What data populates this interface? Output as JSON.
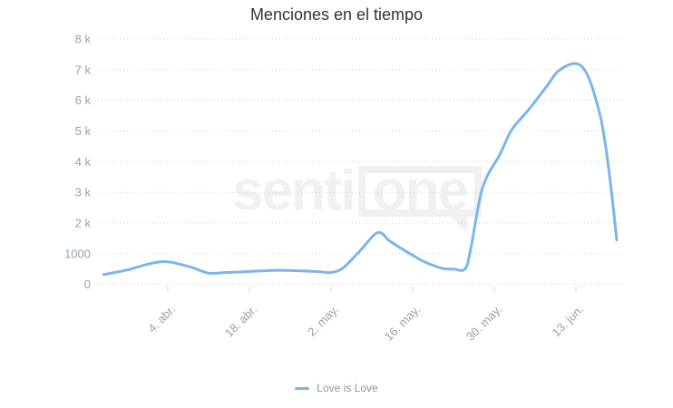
{
  "page": {
    "background": "#ffffff"
  },
  "watermark": {
    "senti": "senti",
    "one": "one"
  },
  "colors": {
    "line": "#7cb5ec",
    "grid_dots": "#cccccc",
    "axis_label": "#979eae",
    "tick_mark": "#d2d5dd",
    "title": "#333333",
    "legend_text": "#8d95a5",
    "watermark": "#f0f0f3"
  },
  "chart_data": {
    "type": "line",
    "title": "Menciones en el tiempo",
    "xlabel": "",
    "ylabel": "",
    "ylim": [
      0,
      8000
    ],
    "grid": "dotted-horizontal",
    "legend_position": "bottom-center",
    "x_ticks": [
      "4. abr.",
      "18. abr.",
      "2. may.",
      "16. may.",
      "30. may.",
      "13. jun."
    ],
    "y_ticks": [
      {
        "value": 0,
        "label": "0"
      },
      {
        "value": 1000,
        "label": "1000"
      },
      {
        "value": 2000,
        "label": "2 k"
      },
      {
        "value": 3000,
        "label": "3 k"
      },
      {
        "value": 4000,
        "label": "4 k"
      },
      {
        "value": 5000,
        "label": "5 k"
      },
      {
        "value": 6000,
        "label": "6 k"
      },
      {
        "value": 7000,
        "label": "7 k"
      },
      {
        "value": 8000,
        "label": "8 k"
      }
    ],
    "series": [
      {
        "name": "Love is Love",
        "color": "#7cb5ec",
        "points": [
          [
            "24. mar.",
            320
          ],
          [
            "28. mar.",
            470
          ],
          [
            "1. abr.",
            680
          ],
          [
            "4. abr.",
            740
          ],
          [
            "8. abr.",
            560
          ],
          [
            "11. abr.",
            370
          ],
          [
            "14. abr.",
            390
          ],
          [
            "17. abr.",
            410
          ],
          [
            "20. abr.",
            440
          ],
          [
            "23. abr.",
            460
          ],
          [
            "27. abr.",
            440
          ],
          [
            "30. abr.",
            410
          ],
          [
            "2. may.",
            390
          ],
          [
            "4. may.",
            530
          ],
          [
            "7. may.",
            1100
          ],
          [
            "10. may.",
            1690
          ],
          [
            "12. may.",
            1420
          ],
          [
            "14. may.",
            1180
          ],
          [
            "16. may.",
            950
          ],
          [
            "18. may.",
            740
          ],
          [
            "21. may.",
            530
          ],
          [
            "23. may.",
            500
          ],
          [
            "25. may.",
            510
          ],
          [
            "26. may.",
            1210
          ],
          [
            "28. may.",
            3160
          ],
          [
            "31. may.",
            4250
          ],
          [
            "2. jun.",
            5040
          ],
          [
            "5. jun.",
            5720
          ],
          [
            "8. jun.",
            6460
          ],
          [
            "10. jun.",
            6960
          ],
          [
            "13. jun.",
            7200
          ],
          [
            "15. jun.",
            6810
          ],
          [
            "17. jun.",
            5630
          ],
          [
            "18. jun.",
            4630
          ],
          [
            "19. jun.",
            3160
          ],
          [
            "20. jun.",
            1450
          ]
        ]
      }
    ]
  }
}
